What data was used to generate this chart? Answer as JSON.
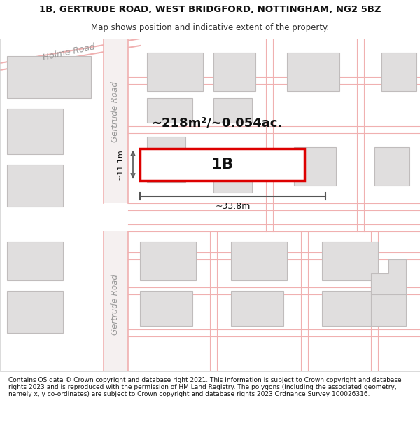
{
  "title": "1B, GERTRUDE ROAD, WEST BRIDGFORD, NOTTINGHAM, NG2 5BZ",
  "subtitle": "Map shows position and indicative extent of the property.",
  "footer": "Contains OS data © Crown copyright and database right 2021. This information is subject to Crown copyright and database rights 2023 and is reproduced with the permission of HM Land Registry. The polygons (including the associated geometry, namely x, y co-ordinates) are subject to Crown copyright and database rights 2023 Ordnance Survey 100026316.",
  "bg_color": "#f5f0f0",
  "map_bg": "#f9f7f7",
  "title_bg": "#ffffff",
  "footer_bg": "#ffffff",
  "road_color_light": "#f0b0b0",
  "road_color_dark": "#c8a0a0",
  "building_fill": "#e0dede",
  "building_outline": "#c0bcbc",
  "property_fill": "#ffffff",
  "property_outline": "#dd0000",
  "dim_color": "#555555",
  "road_label_color": "#888888",
  "area_text": "~218m²/~0.054ac.",
  "label_1b": "1B",
  "dim_width": "~33.8m",
  "dim_height": "~11.1m"
}
